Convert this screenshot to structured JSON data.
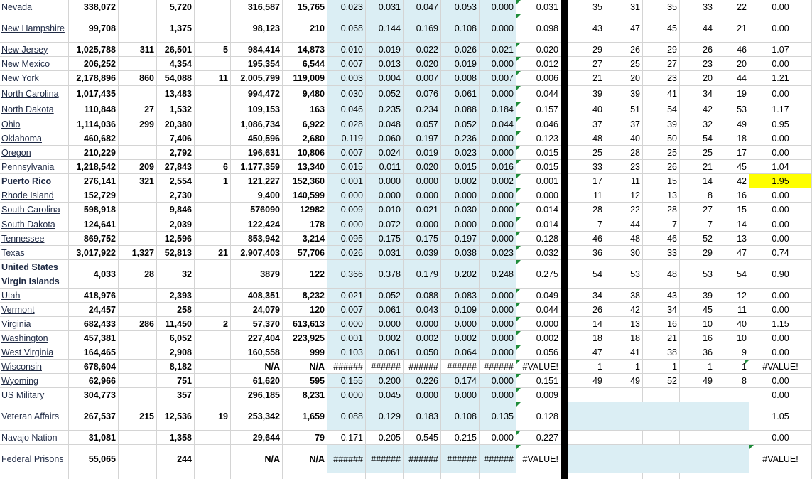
{
  "rows": [
    {
      "name": "Nevada",
      "cells": [
        "338,072",
        null,
        "5,720",
        null,
        "316,587",
        "15,765",
        "0.023",
        "0.031",
        "0.047",
        "0.053",
        "0.000",
        "0.031",
        "35",
        "31",
        "35",
        "33",
        "22",
        "0.00"
      ]
    },
    {
      "name": "New Hampshire",
      "cells": [
        "99,708",
        null,
        "1,375",
        null,
        "98,123",
        "210",
        "0.068",
        "0.144",
        "0.169",
        "0.108",
        "0.000",
        "0.098",
        "43",
        "47",
        "45",
        "44",
        "21",
        "0.00"
      ]
    },
    {
      "name": "New Jersey",
      "cells": [
        "1,025,788",
        "311",
        "26,501",
        "5",
        "984,414",
        "14,873",
        "0.010",
        "0.019",
        "0.022",
        "0.026",
        "0.021",
        "0.020",
        "29",
        "26",
        "29",
        "26",
        "46",
        "1.07"
      ]
    },
    {
      "name": "New Mexico",
      "cells": [
        "206,252",
        null,
        "4,354",
        null,
        "195,354",
        "6,544",
        "0.007",
        "0.013",
        "0.020",
        "0.019",
        "0.000",
        "0.012",
        "27",
        "25",
        "27",
        "23",
        "20",
        "0.00"
      ]
    },
    {
      "name": "New York",
      "cells": [
        "2,178,896",
        "860",
        "54,088",
        "11",
        "2,005,799",
        "119,009",
        "0.003",
        "0.004",
        "0.007",
        "0.008",
        "0.007",
        "0.006",
        "21",
        "20",
        "23",
        "20",
        "44",
        "1.21"
      ]
    },
    {
      "name": "North Carolina",
      "cells": [
        "1,017,435",
        null,
        "13,483",
        null,
        "994,472",
        "9,480",
        "0.030",
        "0.052",
        "0.076",
        "0.061",
        "0.000",
        "0.044",
        "39",
        "39",
        "41",
        "34",
        "19",
        "0.00"
      ]
    },
    {
      "name": "North Dakota",
      "cells": [
        "110,848",
        "27",
        "1,532",
        null,
        "109,153",
        "163",
        "0.046",
        "0.235",
        "0.234",
        "0.088",
        "0.184",
        "0.157",
        "40",
        "51",
        "54",
        "42",
        "53",
        "1.17"
      ]
    },
    {
      "name": "Ohio",
      "cells": [
        "1,114,036",
        "299",
        "20,380",
        null,
        "1,086,734",
        "6,922",
        "0.028",
        "0.048",
        "0.057",
        "0.052",
        "0.044",
        "0.046",
        "37",
        "37",
        "39",
        "32",
        "49",
        "0.95"
      ]
    },
    {
      "name": "Oklahoma",
      "cells": [
        "460,682",
        null,
        "7,406",
        null,
        "450,596",
        "2,680",
        "0.119",
        "0.060",
        "0.197",
        "0.236",
        "0.000",
        "0.123",
        "48",
        "40",
        "50",
        "54",
        "18",
        "0.00"
      ]
    },
    {
      "name": "Oregon",
      "cells": [
        "210,229",
        null,
        "2,792",
        null,
        "196,631",
        "10,806",
        "0.007",
        "0.024",
        "0.019",
        "0.023",
        "0.000",
        "0.015",
        "25",
        "28",
        "25",
        "25",
        "17",
        "0.00"
      ]
    },
    {
      "name": "Pennsylvania",
      "cells": [
        "1,218,542",
        "209",
        "27,843",
        "6",
        "1,177,359",
        "13,340",
        "0.015",
        "0.011",
        "0.020",
        "0.015",
        "0.016",
        "0.015",
        "33",
        "23",
        "26",
        "21",
        "45",
        "1.04"
      ]
    },
    {
      "name": "Puerto Rico",
      "cells": [
        "276,141",
        "321",
        "2,554",
        "1",
        "121,227",
        "152,360",
        "0.001",
        "0.000",
        "0.000",
        "0.002",
        "0.002",
        "0.001",
        "17",
        "11",
        "15",
        "14",
        "42",
        "1.95"
      ]
    },
    {
      "name": "Rhode Island",
      "cells": [
        "152,729",
        null,
        "2,730",
        null,
        "9,400",
        "140,599",
        "0.000",
        "0.000",
        "0.000",
        "0.000",
        "0.000",
        "0.000",
        "11",
        "12",
        "13",
        "8",
        "16",
        "0.00"
      ]
    },
    {
      "name": "South Carolina",
      "cells": [
        "598,918",
        null,
        "9,846",
        null,
        "576090",
        "12982",
        "0.009",
        "0.010",
        "0.021",
        "0.030",
        "0.000",
        "0.014",
        "28",
        "22",
        "28",
        "27",
        "15",
        "0.00"
      ]
    },
    {
      "name": "South Dakota",
      "cells": [
        "124,641",
        null,
        "2,039",
        null,
        "122,424",
        "178",
        "0.000",
        "0.072",
        "0.000",
        "0.000",
        "0.000",
        "0.014",
        "7",
        "44",
        "7",
        "7",
        "14",
        "0.00"
      ]
    },
    {
      "name": "Tennessee",
      "cells": [
        "869,752",
        null,
        "12,596",
        null,
        "853,942",
        "3,214",
        "0.095",
        "0.175",
        "0.175",
        "0.197",
        "0.000",
        "0.128",
        "46",
        "48",
        "46",
        "52",
        "13",
        "0.00"
      ]
    },
    {
      "name": "Texas",
      "cells": [
        "3,017,922",
        "1,327",
        "52,813",
        "21",
        "2,907,403",
        "57,706",
        "0.026",
        "0.031",
        "0.039",
        "0.038",
        "0.023",
        "0.032",
        "36",
        "30",
        "33",
        "29",
        "47",
        "0.74"
      ]
    },
    {
      "name": "United States Virgin Islands",
      "cells": [
        "4,033",
        "28",
        "32",
        null,
        "3879",
        "122",
        "0.366",
        "0.378",
        "0.179",
        "0.202",
        "0.248",
        "0.275",
        "54",
        "53",
        "48",
        "53",
        "54",
        "0.90"
      ]
    },
    {
      "name": "Utah",
      "cells": [
        "418,976",
        null,
        "2,393",
        null,
        "408,351",
        "8,232",
        "0.021",
        "0.052",
        "0.088",
        "0.083",
        "0.000",
        "0.049",
        "34",
        "38",
        "43",
        "39",
        "12",
        "0.00"
      ]
    },
    {
      "name": "Vermont",
      "cells": [
        "24,457",
        null,
        "258",
        null,
        "24,079",
        "120",
        "0.007",
        "0.061",
        "0.043",
        "0.109",
        "0.000",
        "0.044",
        "26",
        "42",
        "34",
        "45",
        "11",
        "0.00"
      ]
    },
    {
      "name": "Virginia",
      "cells": [
        "682,433",
        "286",
        "11,450",
        "2",
        "57,370",
        "613,613",
        "0.000",
        "0.000",
        "0.000",
        "0.000",
        "0.000",
        "0.000",
        "14",
        "13",
        "16",
        "10",
        "40",
        "1.15"
      ]
    },
    {
      "name": "Washington",
      "cells": [
        "457,381",
        null,
        "6,052",
        null,
        "227,404",
        "223,925",
        "0.001",
        "0.002",
        "0.002",
        "0.002",
        "0.000",
        "0.002",
        "18",
        "18",
        "21",
        "16",
        "10",
        "0.00"
      ]
    },
    {
      "name": "West Virginia",
      "cells": [
        "164,465",
        null,
        "2,908",
        null,
        "160,558",
        "999",
        "0.103",
        "0.061",
        "0.050",
        "0.064",
        "0.000",
        "0.056",
        "47",
        "41",
        "38",
        "36",
        "9",
        "0.00"
      ]
    },
    {
      "name": "Wisconsin",
      "cells": [
        "678,604",
        null,
        "8,182",
        null,
        "N/A",
        "N/A",
        "######",
        "######",
        "######",
        "######",
        "######",
        "#VALUE!",
        "1",
        "1",
        "1",
        "1",
        "1",
        "#VALUE!"
      ]
    },
    {
      "name": "Wyoming",
      "cells": [
        "62,966",
        null,
        "751",
        null,
        "61,620",
        "595",
        "0.155",
        "0.200",
        "0.226",
        "0.174",
        "0.000",
        "0.151",
        "49",
        "49",
        "52",
        "49",
        "8",
        "0.00"
      ]
    },
    {
      "name": "US Military",
      "cells": [
        "304,773",
        null,
        "357",
        null,
        "296,185",
        "8,231",
        "0.000",
        "0.045",
        "0.000",
        "0.000",
        "0.000",
        "0.009",
        null,
        null,
        null,
        null,
        null,
        "0.00"
      ]
    },
    {
      "name": "Veteran Affairs",
      "cells": [
        "267,537",
        "215",
        "12,536",
        "19",
        "253,342",
        "1,659",
        "0.088",
        "0.129",
        "0.183",
        "0.108",
        "0.135",
        "0.128",
        null,
        null,
        null,
        null,
        null,
        "1.05"
      ]
    },
    {
      "name": "Navajo Nation",
      "cells": [
        "31,081",
        null,
        "1,358",
        null,
        "29,644",
        "79",
        "0.171",
        "0.205",
        "0.545",
        "0.215",
        "0.000",
        "0.227",
        null,
        null,
        null,
        null,
        null,
        "0.00"
      ]
    },
    {
      "name": "Federal Prisons",
      "cells": [
        "55,065",
        null,
        "244",
        null,
        "N/A",
        "N/A",
        "######",
        "######",
        "######",
        "######",
        "######",
        "#VALUE!",
        null,
        null,
        null,
        null,
        null,
        "#VALUE!"
      ]
    }
  ]
}
